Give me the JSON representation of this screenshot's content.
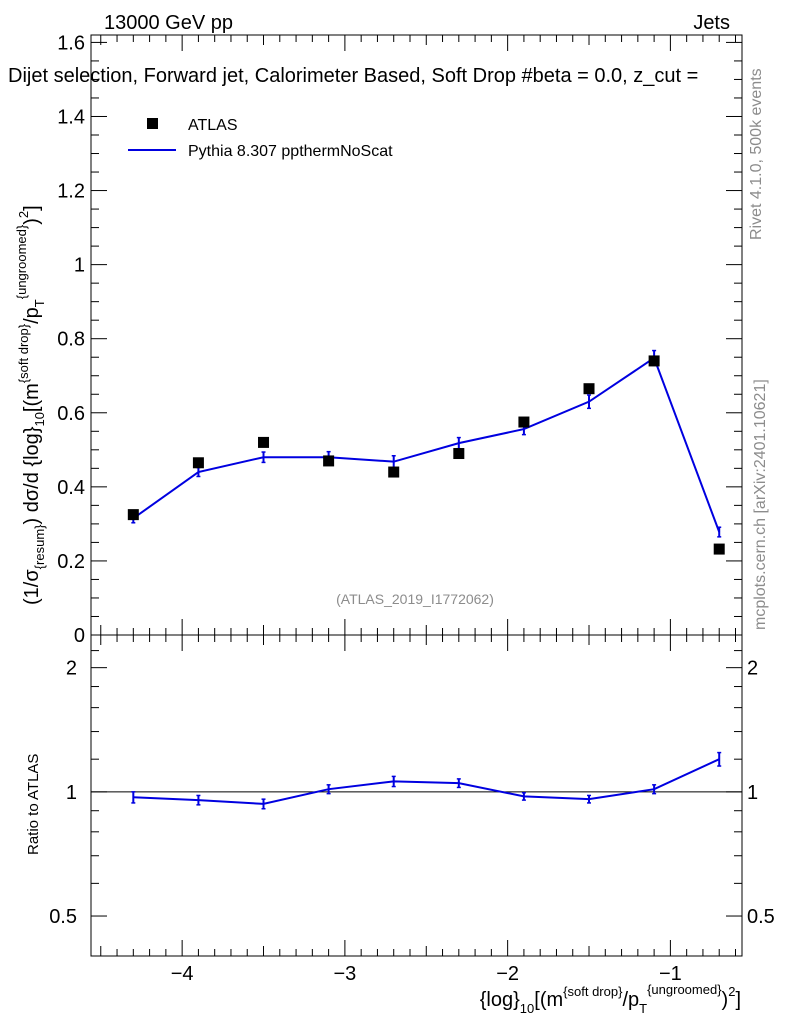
{
  "header": {
    "energy": "13000 GeV pp",
    "process": "Jets"
  },
  "plot_title": "Dijet selection, Forward jet, Calorimeter Based, Soft Drop #beta = 0.0, z_cut =",
  "side_labels": {
    "rivet": "Rivet 4.1.0,  500k events",
    "mcplots": "mcplots.cern.ch [arXiv:2401.10621]"
  },
  "analysis_id": "(ATLAS_2019_I1772062)",
  "legend": {
    "data_label": "ATLAS",
    "mc_label": "Pythia 8.307 ppthermNoScat"
  },
  "colors": {
    "data": "#000000",
    "mc": "#0000e0",
    "frame": "#000000",
    "gray_text": "#8c8c8c"
  },
  "chart_data": [
    {
      "type": "scatter+line",
      "title": "Dijet selection, Forward jet, Calorimeter Based, Soft Drop #beta = 0.0, z_cut =",
      "ylabel": "(1/σ_{resum}) dσ/d {log}_10[(m^{soft drop}/p_T^{ungroomed})^2]",
      "xlabel": "{log}_10[(m^{soft drop}/p_T^{ungroomed})^2]",
      "xlim": [
        -4.56,
        -0.56
      ],
      "ylim": [
        0,
        1.62
      ],
      "yticks": [
        0,
        0.2,
        0.4,
        0.6,
        0.8,
        1,
        1.2,
        1.4,
        1.6
      ],
      "ytick_labels": [
        "0",
        "0.2",
        "0.4",
        "0.6",
        "0.8",
        "1",
        "1.2",
        "1.4",
        "1.6"
      ],
      "series": [
        {
          "name": "ATLAS",
          "style": "square-markers",
          "x": [
            -4.3,
            -3.9,
            -3.5,
            -3.1,
            -2.7,
            -2.3,
            -1.9,
            -1.5,
            -1.1,
            -0.7
          ],
          "y": [
            0.325,
            0.465,
            0.52,
            0.47,
            0.44,
            0.49,
            0.575,
            0.665,
            0.74,
            0.232
          ]
        },
        {
          "name": "Pythia 8.307 ppthermNoScat",
          "style": "line-with-errorbars",
          "x": [
            -4.3,
            -3.9,
            -3.5,
            -3.1,
            -2.7,
            -2.3,
            -1.9,
            -1.5,
            -1.1,
            -0.7
          ],
          "y": [
            0.315,
            0.44,
            0.48,
            0.48,
            0.468,
            0.518,
            0.556,
            0.63,
            0.748,
            0.278
          ],
          "err": [
            0.012,
            0.012,
            0.014,
            0.015,
            0.016,
            0.015,
            0.015,
            0.018,
            0.02,
            0.013
          ]
        }
      ]
    },
    {
      "type": "line",
      "ylabel": "Ratio to ATLAS",
      "xlabel": "{log}_10[(m^{soft drop}/p_T^{ungroomed})^2]",
      "xlim": [
        -4.56,
        -0.56
      ],
      "xticks": [
        -4,
        -3,
        -2,
        -1
      ],
      "xtick_labels": [
        "−4",
        "−3",
        "−2",
        "−1"
      ],
      "ylim": [
        0.4,
        2.4
      ],
      "yscale": "log",
      "yticks": [
        0.5,
        1,
        2
      ],
      "ytick_labels": [
        "0.5",
        "1",
        "2"
      ],
      "reference_line": 1,
      "series": [
        {
          "name": "Pythia 8.307 ppthermNoScat / ATLAS",
          "x": [
            -4.3,
            -3.9,
            -3.5,
            -3.1,
            -2.7,
            -2.3,
            -1.9,
            -1.5,
            -1.1,
            -0.7
          ],
          "y": [
            0.97,
            0.955,
            0.935,
            1.015,
            1.06,
            1.05,
            0.975,
            0.96,
            1.015,
            1.2
          ],
          "err": [
            0.03,
            0.025,
            0.025,
            0.025,
            0.03,
            0.025,
            0.02,
            0.02,
            0.025,
            0.045
          ]
        }
      ]
    }
  ]
}
